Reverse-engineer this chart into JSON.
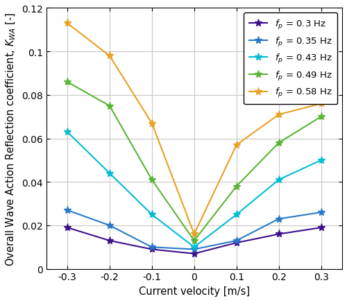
{
  "x": [
    -0.3,
    -0.2,
    -0.1,
    0.0,
    0.1,
    0.2,
    0.3
  ],
  "series": [
    {
      "label": "$f_p$ = 0.3 Hz",
      "color": "#3b0f8c",
      "values": [
        0.019,
        0.013,
        0.009,
        0.007,
        0.012,
        0.016,
        0.019
      ]
    },
    {
      "label": "$f_p$ = 0.35 Hz",
      "color": "#2878c8",
      "values": [
        0.027,
        0.02,
        0.01,
        0.009,
        0.013,
        0.023,
        0.026
      ]
    },
    {
      "label": "$f_p$ = 0.43 Hz",
      "color": "#00bcd4",
      "values": [
        0.063,
        0.044,
        0.025,
        0.01,
        0.025,
        0.041,
        0.05
      ]
    },
    {
      "label": "$f_p$ = 0.49 Hz",
      "color": "#5ab534",
      "values": [
        0.086,
        0.075,
        0.041,
        0.013,
        0.038,
        0.058,
        0.07
      ]
    },
    {
      "label": "$f_p$ = 0.58 Hz",
      "color": "#e8a020",
      "values": [
        0.113,
        0.098,
        0.067,
        0.016,
        0.057,
        0.071,
        0.076
      ]
    }
  ],
  "xlabel": "Current velocity [m/s]",
  "xlim": [
    -0.35,
    0.35
  ],
  "ylim": [
    0,
    0.12
  ],
  "xticks": [
    -0.3,
    -0.2,
    -0.1,
    0.0,
    0.1,
    0.2,
    0.3
  ],
  "xtick_labels": [
    "-0.3",
    "-0.2",
    "-0.1",
    "0",
    "0.1",
    "0.2",
    "0.3"
  ],
  "yticks": [
    0,
    0.02,
    0.04,
    0.06,
    0.08,
    0.1,
    0.12
  ],
  "ytick_labels": [
    "0",
    "0.02",
    "0.04",
    "0.06",
    "0.08",
    "0.1",
    "0.12"
  ],
  "grid_color": "#c8c8c8",
  "bg_color": "#ffffff",
  "legend_fontsize": 9.5,
  "tick_fontsize": 10,
  "label_fontsize": 10.5
}
